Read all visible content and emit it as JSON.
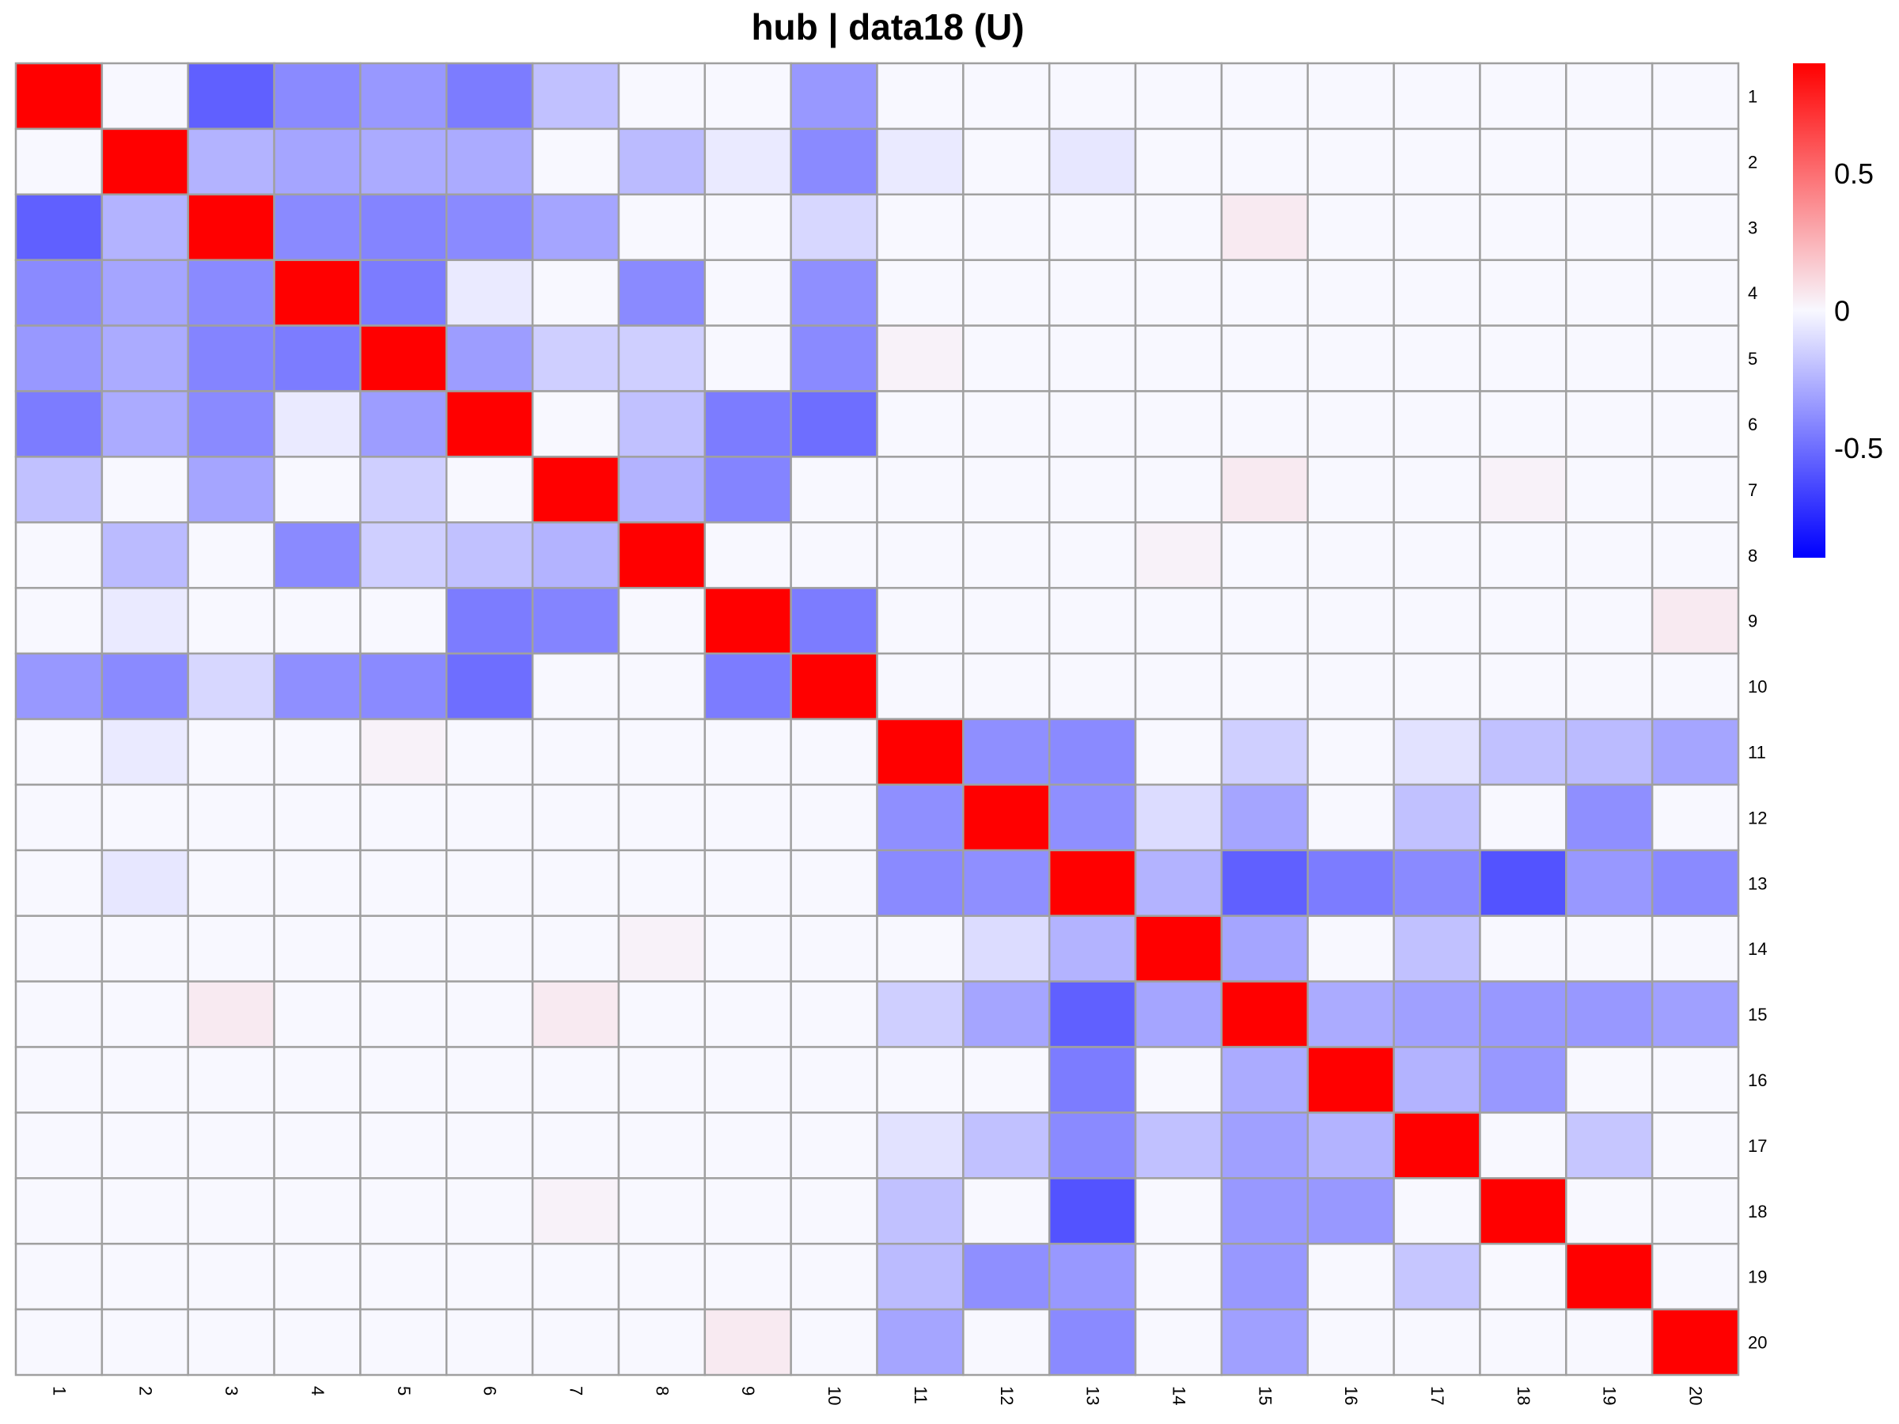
{
  "chart_data": {
    "type": "heatmap",
    "title": "hub | data18 (U)",
    "row_labels": [
      "1",
      "2",
      "3",
      "4",
      "5",
      "6",
      "7",
      "8",
      "9",
      "10",
      "11",
      "12",
      "13",
      "14",
      "15",
      "16",
      "17",
      "18",
      "19",
      "20"
    ],
    "col_labels": [
      "1",
      "2",
      "3",
      "4",
      "5",
      "6",
      "7",
      "8",
      "9",
      "10",
      "11",
      "12",
      "13",
      "14",
      "15",
      "16",
      "17",
      "18",
      "19",
      "20"
    ],
    "color_scale": {
      "min": -0.9,
      "max": 0.9,
      "low": "#0000FF",
      "mid": "#F8F8FF",
      "high": "#FF0000"
    },
    "legend": {
      "position": "right",
      "ticks": [
        0.5,
        0,
        -0.5
      ],
      "tick_labels": [
        "0.5",
        "0",
        "-0.5"
      ]
    },
    "values": [
      [
        0.9,
        0.0,
        -0.55,
        -0.4,
        -0.35,
        -0.45,
        -0.2,
        0.0,
        0.0,
        -0.35,
        0.0,
        0.0,
        0.0,
        0.0,
        0.0,
        0.0,
        0.0,
        0.0,
        0.0,
        0.0
      ],
      [
        0.0,
        0.9,
        -0.25,
        -0.3,
        -0.28,
        -0.28,
        0.0,
        -0.22,
        -0.05,
        -0.4,
        -0.05,
        0.0,
        -0.06,
        0.0,
        0.0,
        0.0,
        0.0,
        0.0,
        0.0,
        0.0
      ],
      [
        -0.55,
        -0.25,
        0.9,
        -0.4,
        -0.42,
        -0.4,
        -0.3,
        0.0,
        0.0,
        -0.12,
        0.0,
        0.0,
        0.0,
        0.0,
        0.05,
        0.0,
        0.0,
        0.0,
        0.0,
        0.0
      ],
      [
        -0.4,
        -0.3,
        -0.4,
        0.9,
        -0.45,
        -0.05,
        0.0,
        -0.4,
        0.0,
        -0.38,
        0.0,
        0.0,
        0.0,
        0.0,
        0.0,
        0.0,
        0.0,
        0.0,
        0.0,
        0.0
      ],
      [
        -0.35,
        -0.28,
        -0.42,
        -0.45,
        0.9,
        -0.33,
        -0.15,
        -0.15,
        0.0,
        -0.4,
        0.02,
        0.0,
        0.0,
        0.0,
        0.0,
        0.0,
        0.0,
        0.0,
        0.0,
        0.0
      ],
      [
        -0.45,
        -0.28,
        -0.4,
        -0.05,
        -0.33,
        0.9,
        0.0,
        -0.2,
        -0.45,
        -0.5,
        0.0,
        0.0,
        0.0,
        0.0,
        0.0,
        0.0,
        0.0,
        0.0,
        0.0,
        0.0
      ],
      [
        -0.2,
        0.0,
        -0.3,
        0.0,
        -0.15,
        0.0,
        0.9,
        -0.25,
        -0.42,
        0.0,
        0.0,
        0.0,
        0.0,
        0.0,
        0.05,
        0.0,
        0.0,
        0.02,
        0.0,
        0.0
      ],
      [
        0.0,
        -0.22,
        0.0,
        -0.4,
        -0.15,
        -0.2,
        -0.25,
        0.9,
        0.0,
        0.0,
        0.0,
        0.0,
        0.0,
        0.02,
        0.0,
        0.0,
        0.0,
        0.0,
        0.0,
        0.0
      ],
      [
        0.0,
        -0.05,
        0.0,
        0.0,
        0.0,
        -0.45,
        -0.42,
        0.0,
        0.9,
        -0.45,
        0.0,
        0.0,
        0.0,
        0.0,
        0.0,
        0.0,
        0.0,
        0.0,
        0.0,
        0.05
      ],
      [
        -0.35,
        -0.4,
        -0.12,
        -0.38,
        -0.4,
        -0.5,
        0.0,
        0.0,
        -0.45,
        0.9,
        0.0,
        0.0,
        0.0,
        0.0,
        0.0,
        0.0,
        0.0,
        0.0,
        0.0,
        0.0
      ],
      [
        0.0,
        -0.05,
        0.0,
        0.0,
        0.02,
        0.0,
        0.0,
        0.0,
        0.0,
        0.0,
        0.9,
        -0.38,
        -0.4,
        0.0,
        -0.15,
        0.0,
        -0.08,
        -0.2,
        -0.22,
        -0.3
      ],
      [
        0.0,
        0.0,
        0.0,
        0.0,
        0.0,
        0.0,
        0.0,
        0.0,
        0.0,
        0.0,
        -0.38,
        0.9,
        -0.38,
        -0.1,
        -0.3,
        0.0,
        -0.2,
        0.0,
        -0.38,
        0.0
      ],
      [
        0.0,
        -0.06,
        0.0,
        0.0,
        0.0,
        0.0,
        0.0,
        0.0,
        0.0,
        0.0,
        -0.4,
        -0.38,
        0.9,
        -0.25,
        -0.55,
        -0.45,
        -0.4,
        -0.6,
        -0.35,
        -0.4
      ],
      [
        0.0,
        0.0,
        0.0,
        0.0,
        0.0,
        0.0,
        0.0,
        0.02,
        0.0,
        0.0,
        0.0,
        -0.1,
        -0.25,
        0.9,
        -0.3,
        0.0,
        -0.2,
        0.0,
        0.0,
        0.0
      ],
      [
        0.0,
        0.0,
        0.05,
        0.0,
        0.0,
        0.0,
        0.05,
        0.0,
        0.0,
        0.0,
        -0.15,
        -0.3,
        -0.55,
        -0.3,
        0.9,
        -0.28,
        -0.32,
        -0.35,
        -0.35,
        -0.32
      ],
      [
        0.0,
        0.0,
        0.0,
        0.0,
        0.0,
        0.0,
        0.0,
        0.0,
        0.0,
        0.0,
        0.0,
        0.0,
        -0.45,
        0.0,
        -0.28,
        0.9,
        -0.25,
        -0.35,
        0.0,
        0.0
      ],
      [
        0.0,
        0.0,
        0.0,
        0.0,
        0.0,
        0.0,
        0.0,
        0.0,
        0.0,
        0.0,
        -0.08,
        -0.2,
        -0.4,
        -0.2,
        -0.32,
        -0.25,
        0.9,
        0.0,
        -0.18,
        0.0
      ],
      [
        0.0,
        0.0,
        0.0,
        0.0,
        0.0,
        0.0,
        0.02,
        0.0,
        0.0,
        0.0,
        -0.2,
        0.0,
        -0.6,
        0.0,
        -0.35,
        -0.35,
        0.0,
        0.9,
        0.0,
        0.0
      ],
      [
        0.0,
        0.0,
        0.0,
        0.0,
        0.0,
        0.0,
        0.0,
        0.0,
        0.0,
        0.0,
        -0.22,
        -0.38,
        -0.35,
        0.0,
        -0.35,
        0.0,
        -0.18,
        0.0,
        0.9,
        0.0
      ],
      [
        0.0,
        0.0,
        0.0,
        0.0,
        0.0,
        0.0,
        0.0,
        0.0,
        0.05,
        0.0,
        -0.3,
        0.0,
        -0.4,
        0.0,
        -0.32,
        0.0,
        0.0,
        0.0,
        0.0,
        0.9
      ]
    ]
  }
}
